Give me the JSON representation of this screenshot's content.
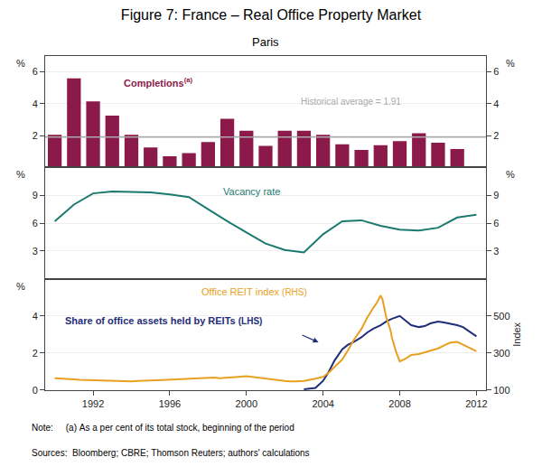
{
  "chart_data": [
    {
      "type": "bar",
      "title": "Figure 7: France – Real Office Property Market",
      "subtitle": "Paris",
      "series": [
        {
          "type": "bar",
          "x": [
            1990,
            1991,
            1992,
            1993,
            1994,
            1995,
            1996,
            1997,
            1998,
            1999,
            2000,
            2001,
            2002,
            2003,
            2004,
            2005,
            2006,
            2007,
            2008,
            2009,
            2010,
            2011
          ],
          "values": [
            2.05,
            5.6,
            4.15,
            3.25,
            2.05,
            1.25,
            0.7,
            0.9,
            1.6,
            3.05,
            2.3,
            1.35,
            2.3,
            2.3,
            2.05,
            1.45,
            1.1,
            1.4,
            1.65,
            2.15,
            1.55,
            1.15
          ],
          "color": "#8B1A4A"
        },
        {
          "type": "hline",
          "value": 1.91,
          "color": "#AAAAAA"
        }
      ],
      "xlim": [
        1989.5,
        2012.5
      ],
      "xticks": [
        1992,
        1996,
        2000,
        2004,
        2008,
        2012
      ],
      "ylim": [
        0,
        7
      ],
      "yticks": [
        2,
        4,
        6
      ],
      "y2lim": [
        0,
        7
      ],
      "y2ticks": [
        2,
        4,
        6
      ],
      "ylabel": "%",
      "y2label": "%",
      "grid": "y",
      "tick_labels": "y",
      "annotations": [
        [
          "Completions",
          "(a)"
        ],
        [
          "Historical average = 1.91"
        ]
      ]
    },
    {
      "type": "line",
      "series": [
        {
          "type": "line",
          "x": [
            1990,
            1991,
            1992,
            1993,
            1994,
            1995,
            1996,
            1997,
            1998,
            1999,
            2000,
            2001,
            2002,
            2003,
            2004,
            2005,
            2006,
            2007,
            2008,
            2009,
            2010,
            2011,
            2012
          ],
          "values": [
            6.2,
            8.0,
            9.2,
            9.4,
            9.35,
            9.3,
            9.1,
            8.8,
            7.5,
            6.2,
            5.0,
            3.8,
            3.1,
            2.85,
            4.8,
            6.2,
            6.3,
            5.7,
            5.3,
            5.2,
            5.5,
            6.6,
            6.9
          ],
          "color": "#1A7A6E"
        }
      ],
      "xlim": [
        1989.5,
        2012.5
      ],
      "xticks": [
        1992,
        1996,
        2000,
        2004,
        2008,
        2012
      ],
      "ylim": [
        0,
        12
      ],
      "yticks": [
        3,
        6,
        9
      ],
      "y2lim": [
        0,
        12
      ],
      "y2ticks": [
        3,
        6,
        9
      ],
      "ylabel": "%",
      "y2label": "%",
      "grid": "y",
      "tick_labels": "y",
      "annotations": [
        [
          "Vacancy rate"
        ]
      ]
    },
    {
      "type": "line",
      "series": [
        {
          "type": "line",
          "x": [
            2003.0,
            2003.3,
            2003.6,
            2004.0,
            2004.3,
            2004.6,
            2005.0,
            2005.3,
            2005.6,
            2006.0,
            2006.3,
            2006.6,
            2007.0,
            2007.3,
            2007.6,
            2008.0,
            2008.3,
            2008.6,
            2009.0,
            2009.3,
            2009.6,
            2010.0,
            2010.3,
            2010.6,
            2011.0,
            2011.3,
            2011.6,
            2012.0
          ],
          "values": [
            0.05,
            0.08,
            0.12,
            0.5,
            1.0,
            1.6,
            2.2,
            2.45,
            2.6,
            2.85,
            3.1,
            3.3,
            3.5,
            3.7,
            3.85,
            4.0,
            3.75,
            3.5,
            3.4,
            3.45,
            3.6,
            3.7,
            3.65,
            3.6,
            3.5,
            3.4,
            3.2,
            2.9
          ],
          "color": "#1F2D7A",
          "axis": "y"
        },
        {
          "type": "line",
          "x": [
            1990.0,
            1990.3,
            1990.6,
            1991.0,
            1991.3,
            1991.6,
            1992.0,
            1992.3,
            1992.6,
            1993.0,
            1993.3,
            1993.6,
            1994.0,
            1994.3,
            1994.6,
            1995.0,
            1995.3,
            1995.6,
            1996.0,
            1996.3,
            1996.6,
            1997.0,
            1997.3,
            1997.6,
            1998.0,
            1998.3,
            1998.6,
            1999.0,
            1999.3,
            1999.6,
            2000.0,
            2000.3,
            2000.6,
            2001.0,
            2001.3,
            2001.6,
            2002.0,
            2002.3,
            2002.6,
            2003.0,
            2003.3,
            2003.6,
            2004.0,
            2004.3,
            2004.6,
            2005.0,
            2005.3,
            2005.6,
            2006.0,
            2006.3,
            2006.6,
            2006.8,
            2007.0,
            2007.1,
            2007.2,
            2007.3,
            2007.5,
            2007.6,
            2007.8,
            2008.0,
            2008.3,
            2008.6,
            2009.0,
            2009.3,
            2009.6,
            2010.0,
            2010.3,
            2010.6,
            2011.0,
            2011.3,
            2011.6,
            2012.0
          ],
          "values": [
            165,
            162,
            160,
            158,
            156,
            155,
            153,
            151,
            150,
            148,
            147,
            146,
            148,
            150,
            152,
            153,
            154,
            155,
            157,
            159,
            161,
            163,
            165,
            167,
            170,
            168,
            165,
            168,
            170,
            172,
            175,
            172,
            168,
            163,
            158,
            153,
            150,
            148,
            147,
            150,
            155,
            162,
            172,
            195,
            225,
            265,
            315,
            370,
            430,
            490,
            540,
            570,
            610,
            590,
            540,
            490,
            430,
            380,
            310,
            255,
            270,
            290,
            295,
            305,
            315,
            325,
            340,
            355,
            360,
            345,
            330,
            310
          ],
          "color": "#E8A020",
          "axis": "y2"
        }
      ],
      "xlim": [
        1989.5,
        2012.5
      ],
      "xticks": [
        1992,
        1996,
        2000,
        2004,
        2008,
        2012
      ],
      "ylim": [
        0,
        6
      ],
      "yticks": [
        0,
        2,
        4
      ],
      "y2lim": [
        100,
        700
      ],
      "y2ticks": [
        100,
        300,
        500
      ],
      "ylabel": "%",
      "y2label": "Index",
      "grid": "y",
      "annotations": [
        [
          "Office REIT index ",
          "(RHS)"
        ],
        [
          "Share of office assets held by REITs ",
          "(LHS)"
        ],
        [
          "Note:     (a) As a per cent of its total stock, beginning of the period"
        ],
        [
          "Sources:  Bloomberg; CBRE; Thomson Reuters; authors' calculations"
        ]
      ]
    }
  ]
}
